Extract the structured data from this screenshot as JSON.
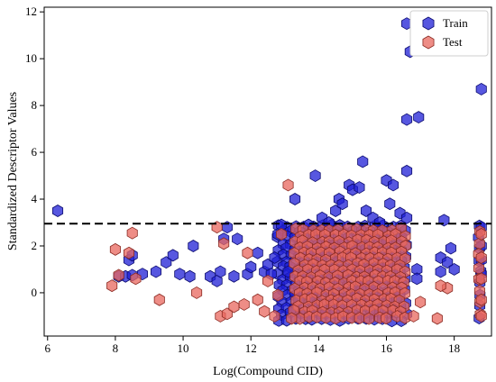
{
  "chart_data": {
    "type": "scatter",
    "marker": "hexagon",
    "title": "",
    "xlabel": "Log(Compound CID)",
    "ylabel": "Standardized Descriptor Values",
    "xlim": [
      5.9,
      19.1
    ],
    "ylim": [
      -1.85,
      12.2
    ],
    "xticks": [
      6,
      8,
      10,
      12,
      14,
      16,
      18
    ],
    "yticks": [
      0,
      2,
      4,
      6,
      8,
      10,
      12
    ],
    "grid": false,
    "legend": {
      "position": "top-right"
    },
    "threshold_line": {
      "y": 2.95,
      "style": "dashed",
      "color": "#000000"
    },
    "series": [
      {
        "name": "Train",
        "color": "#1f1fd6",
        "edge": "#0b0b6e",
        "alpha": 0.75,
        "points": [
          [
            6.3,
            3.5
          ],
          [
            8.1,
            0.7
          ],
          [
            8.3,
            0.7
          ],
          [
            8.5,
            0.75
          ],
          [
            8.4,
            1.4
          ],
          [
            8.5,
            1.6
          ],
          [
            8.8,
            0.8
          ],
          [
            9.2,
            0.9
          ],
          [
            9.5,
            1.3
          ],
          [
            9.7,
            1.6
          ],
          [
            9.9,
            0.8
          ],
          [
            10.2,
            0.7
          ],
          [
            10.3,
            2.0
          ],
          [
            10.8,
            0.7
          ],
          [
            11.0,
            0.5
          ],
          [
            11.1,
            0.9
          ],
          [
            11.2,
            2.3
          ],
          [
            11.3,
            2.8
          ],
          [
            11.5,
            0.7
          ],
          [
            11.6,
            2.3
          ],
          [
            11.9,
            0.8
          ],
          [
            12.0,
            1.1
          ],
          [
            12.2,
            1.7
          ],
          [
            12.4,
            0.9
          ],
          [
            12.5,
            1.2
          ],
          [
            12.6,
            0.8
          ],
          [
            12.7,
            1.5
          ],
          [
            12.8,
            2.5
          ],
          [
            12.9,
            2.9
          ],
          [
            13.1,
            0.9
          ],
          [
            13.3,
            4.0
          ],
          [
            13.6,
            0.8
          ],
          [
            13.7,
            2.9
          ],
          [
            13.9,
            5.0
          ],
          [
            14.1,
            3.2
          ],
          [
            14.3,
            3.0
          ],
          [
            14.5,
            3.5
          ],
          [
            14.6,
            4.0
          ],
          [
            14.7,
            3.8
          ],
          [
            14.9,
            4.6
          ],
          [
            15.0,
            4.4
          ],
          [
            15.2,
            4.5
          ],
          [
            15.3,
            5.6
          ],
          [
            15.4,
            3.5
          ],
          [
            15.6,
            3.2
          ],
          [
            15.8,
            3.0
          ],
          [
            16.0,
            4.8
          ],
          [
            16.1,
            3.8
          ],
          [
            16.2,
            4.6
          ],
          [
            16.4,
            3.4
          ],
          [
            16.6,
            5.2
          ],
          [
            16.6,
            7.4
          ],
          [
            16.7,
            10.3
          ],
          [
            16.6,
            11.5
          ],
          [
            16.95,
            7.5
          ],
          [
            16.6,
            3.2
          ],
          [
            16.9,
            1.0
          ],
          [
            16.9,
            0.6
          ],
          [
            17.6,
            1.5
          ],
          [
            17.7,
            3.1
          ],
          [
            17.8,
            1.3
          ],
          [
            17.9,
            1.9
          ],
          [
            18.0,
            1.0
          ],
          [
            17.6,
            0.9
          ],
          [
            18.8,
            8.7
          ],
          [
            18.8,
            2.8
          ],
          [
            18.8,
            2.0
          ],
          [
            18.8,
            1.4
          ],
          [
            18.8,
            0.8
          ]
        ]
      },
      {
        "name": "Test",
        "color": "#e8675e",
        "edge": "#8a2a22",
        "alpha": 0.75,
        "points": [
          [
            8.0,
            1.85
          ],
          [
            8.5,
            2.55
          ],
          [
            7.9,
            0.3
          ],
          [
            8.6,
            0.6
          ],
          [
            8.4,
            1.7
          ],
          [
            8.1,
            0.75
          ],
          [
            9.3,
            -0.3
          ],
          [
            10.4,
            0.0
          ],
          [
            11.0,
            2.8
          ],
          [
            11.1,
            -1.0
          ],
          [
            11.2,
            2.1
          ],
          [
            11.3,
            -0.9
          ],
          [
            11.5,
            -0.6
          ],
          [
            11.8,
            -0.5
          ],
          [
            11.9,
            1.7
          ],
          [
            12.2,
            -0.3
          ],
          [
            12.4,
            -0.8
          ],
          [
            12.5,
            0.5
          ],
          [
            12.7,
            -1.0
          ],
          [
            12.8,
            -0.1
          ],
          [
            12.9,
            2.5
          ],
          [
            13.1,
            4.6
          ],
          [
            13.2,
            -1.1
          ],
          [
            16.8,
            -1.0
          ],
          [
            17.0,
            -0.4
          ],
          [
            17.5,
            -1.1
          ],
          [
            17.8,
            0.2
          ],
          [
            17.6,
            0.3
          ],
          [
            18.8,
            2.5
          ],
          [
            18.8,
            1.5
          ],
          [
            18.8,
            0.6
          ],
          [
            18.8,
            -0.3
          ],
          [
            18.8,
            -1.0
          ]
        ]
      }
    ],
    "dense_regions": [
      {
        "series": "Train",
        "x": [
          12.8,
          16.6
        ],
        "y": [
          -1.2,
          2.85
        ],
        "note": "dense cluster"
      },
      {
        "series": "Test",
        "x": [
          13.3,
          16.6
        ],
        "y": [
          -1.25,
          2.7
        ],
        "note": "dense cluster"
      },
      {
        "series": "Train",
        "x": [
          18.75,
          18.85
        ],
        "y": [
          -1.2,
          2.9
        ],
        "note": "dense column"
      },
      {
        "series": "Test",
        "x": [
          18.75,
          18.85
        ],
        "y": [
          -1.25,
          2.6
        ],
        "note": "dense column"
      }
    ]
  }
}
